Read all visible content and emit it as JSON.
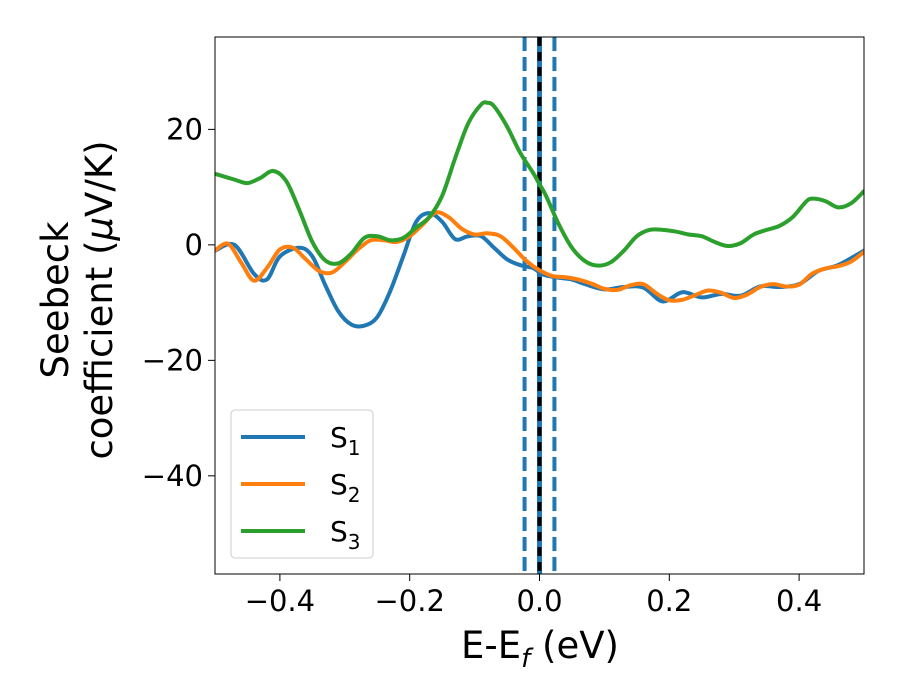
{
  "chart_data": {
    "type": "line",
    "title": "",
    "xlabel": {
      "main": "E-E",
      "sub": "f",
      "unit": " (eV)"
    },
    "ylabel": {
      "line1": "Seebeck",
      "line2": "coefficient  (",
      "mu": "μ",
      "unit": "V/K)"
    },
    "xlim": [
      -0.5,
      0.5
    ],
    "ylim": [
      -57,
      36
    ],
    "xticks": [
      -0.4,
      -0.2,
      0.0,
      0.2,
      0.4
    ],
    "xtick_labels": [
      "−0.4",
      "−0.2",
      "0.0",
      "0.2",
      "0.4"
    ],
    "yticks": [
      -40,
      -20,
      0,
      20
    ],
    "ytick_labels": [
      "−40",
      "−20",
      "0",
      "20"
    ],
    "grid": false,
    "legend_position": "lower-left",
    "vlines": [
      {
        "x": 0.0,
        "style": "solid",
        "color": "#1f77b4"
      },
      {
        "x": 0.0,
        "style": "dashed",
        "color": "#000000"
      },
      {
        "x": -0.023,
        "style": "dashed",
        "color": "#1f77b4"
      },
      {
        "x": 0.023,
        "style": "dashed",
        "color": "#1f77b4"
      }
    ],
    "series": [
      {
        "name": "S",
        "sub": "1",
        "color": "#1f77b4",
        "x": [
          -0.5,
          -0.47,
          -0.44,
          -0.42,
          -0.4,
          -0.37,
          -0.35,
          -0.33,
          -0.31,
          -0.29,
          -0.27,
          -0.25,
          -0.23,
          -0.21,
          -0.19,
          -0.17,
          -0.15,
          -0.13,
          -0.11,
          -0.09,
          -0.07,
          -0.05,
          -0.03,
          -0.01,
          0.0,
          0.01,
          0.03,
          0.05,
          0.07,
          0.1,
          0.13,
          0.16,
          0.19,
          0.22,
          0.25,
          0.28,
          0.31,
          0.34,
          0.37,
          0.4,
          0.43,
          0.46,
          0.5
        ],
        "values": [
          -1,
          0,
          -5,
          -6,
          -2,
          -0.5,
          -2,
          -7,
          -11.5,
          -13.8,
          -14,
          -12.5,
          -8,
          -2,
          4,
          5.5,
          4,
          1,
          1.5,
          1.5,
          -0.5,
          -2.5,
          -3.5,
          -4,
          -4.8,
          -5.3,
          -5.7,
          -6,
          -6.8,
          -7.7,
          -7.3,
          -7.4,
          -9.8,
          -8.2,
          -9.1,
          -8.5,
          -8.8,
          -7.2,
          -7.3,
          -6.8,
          -4.5,
          -3.5,
          -1
        ]
      },
      {
        "name": "S",
        "sub": "2",
        "color": "#ff7f0e",
        "x": [
          -0.5,
          -0.48,
          -0.46,
          -0.44,
          -0.42,
          -0.4,
          -0.38,
          -0.36,
          -0.34,
          -0.32,
          -0.3,
          -0.28,
          -0.26,
          -0.24,
          -0.22,
          -0.2,
          -0.18,
          -0.16,
          -0.14,
          -0.12,
          -0.1,
          -0.08,
          -0.06,
          -0.04,
          -0.02,
          0.0,
          0.02,
          0.04,
          0.06,
          0.08,
          0.1,
          0.12,
          0.14,
          0.16,
          0.18,
          0.2,
          0.22,
          0.24,
          0.26,
          0.28,
          0.3,
          0.32,
          0.34,
          0.36,
          0.38,
          0.4,
          0.42,
          0.44,
          0.46,
          0.48,
          0.5
        ],
        "values": [
          -1,
          0.2,
          -3,
          -6.2,
          -4,
          -0.8,
          -0.5,
          -2.5,
          -4.5,
          -4.8,
          -3,
          -0.8,
          0.8,
          0.8,
          0.5,
          1.5,
          3.5,
          5.6,
          4.8,
          2.8,
          1.8,
          2,
          1.5,
          -0.5,
          -2.8,
          -4.4,
          -5.4,
          -5.6,
          -6,
          -6.7,
          -7.6,
          -7.8,
          -7,
          -6.8,
          -8.4,
          -9.6,
          -9.5,
          -8.7,
          -7.9,
          -8.3,
          -9.2,
          -8.6,
          -7.3,
          -6.8,
          -7.2,
          -6.9,
          -5,
          -4.1,
          -3.7,
          -2.9,
          -1.2
        ]
      },
      {
        "name": "S",
        "sub": "3",
        "color": "#2ca02c",
        "x": [
          -0.5,
          -0.47,
          -0.45,
          -0.43,
          -0.41,
          -0.39,
          -0.37,
          -0.35,
          -0.33,
          -0.31,
          -0.29,
          -0.27,
          -0.25,
          -0.23,
          -0.21,
          -0.19,
          -0.17,
          -0.15,
          -0.13,
          -0.11,
          -0.09,
          -0.08,
          -0.07,
          -0.05,
          -0.03,
          -0.01,
          0.0,
          0.01,
          0.03,
          0.05,
          0.07,
          0.09,
          0.11,
          0.13,
          0.15,
          0.17,
          0.19,
          0.21,
          0.23,
          0.25,
          0.27,
          0.29,
          0.31,
          0.33,
          0.35,
          0.37,
          0.39,
          0.41,
          0.42,
          0.44,
          0.46,
          0.48,
          0.5
        ],
        "values": [
          12.3,
          11.3,
          10.7,
          11.6,
          12.8,
          11,
          6,
          0.5,
          -2.7,
          -3.2,
          -1.5,
          1.2,
          1.5,
          0.8,
          1.2,
          3,
          4.8,
          8.5,
          15,
          21,
          24.3,
          24.6,
          24,
          20.5,
          16,
          12.5,
          10.5,
          8.5,
          3.5,
          -0.5,
          -2.8,
          -3.6,
          -3,
          -1,
          1.5,
          2.6,
          2.6,
          2.3,
          1.8,
          1.5,
          0.5,
          -0.2,
          0.3,
          1.8,
          2.6,
          3.3,
          4.8,
          7.4,
          8,
          7.6,
          6.5,
          7.2,
          9.3
        ]
      }
    ]
  }
}
